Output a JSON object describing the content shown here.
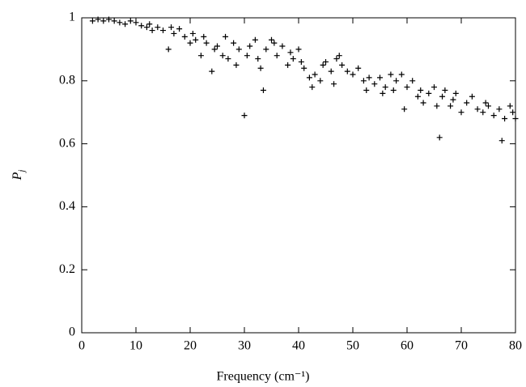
{
  "chart_data": {
    "type": "scatter",
    "marker": "plus",
    "color": "#000000",
    "xlabel": "Frequency (cm⁻¹)",
    "ylabel": "P",
    "ylabel_sub": "j",
    "xlim": [
      0,
      80
    ],
    "ylim": [
      0,
      1
    ],
    "xticks": [
      0,
      10,
      20,
      30,
      40,
      50,
      60,
      70,
      80
    ],
    "yticks": [
      0,
      0.2,
      0.4,
      0.6,
      0.8,
      1
    ],
    "x": [
      2,
      3,
      4,
      5,
      6,
      7,
      8,
      9,
      10,
      11,
      12,
      12.5,
      13,
      14,
      15,
      16,
      16.5,
      17,
      18,
      19,
      20,
      20.5,
      21,
      22,
      22.5,
      23,
      24,
      24.5,
      25,
      26,
      26.5,
      27,
      28,
      28.5,
      29,
      30,
      30.5,
      31,
      32,
      32.5,
      33,
      33.5,
      34,
      35,
      35.5,
      36,
      37,
      38,
      38.5,
      39,
      40,
      40.5,
      41,
      42,
      42.5,
      43,
      44,
      44.5,
      45,
      46,
      46.5,
      47,
      47.5,
      48,
      49,
      50,
      51,
      52,
      52.5,
      53,
      54,
      55,
      55.5,
      56,
      57,
      57.5,
      58,
      59,
      59.5,
      60,
      61,
      62,
      62.5,
      63,
      64,
      65,
      65.5,
      66,
      66.5,
      67,
      68,
      68.5,
      69,
      70,
      71,
      72,
      73,
      74,
      74.5,
      75,
      76,
      77,
      77.5,
      78,
      79,
      79.5,
      80
    ],
    "y": [
      0.99,
      0.995,
      0.99,
      0.995,
      0.99,
      0.985,
      0.98,
      0.99,
      0.985,
      0.975,
      0.97,
      0.98,
      0.96,
      0.97,
      0.96,
      0.9,
      0.97,
      0.95,
      0.965,
      0.94,
      0.92,
      0.95,
      0.93,
      0.88,
      0.94,
      0.92,
      0.83,
      0.9,
      0.91,
      0.88,
      0.94,
      0.87,
      0.92,
      0.85,
      0.9,
      0.69,
      0.88,
      0.91,
      0.93,
      0.87,
      0.84,
      0.77,
      0.9,
      0.93,
      0.92,
      0.88,
      0.91,
      0.85,
      0.89,
      0.87,
      0.9,
      0.86,
      0.84,
      0.81,
      0.78,
      0.82,
      0.8,
      0.85,
      0.86,
      0.83,
      0.79,
      0.87,
      0.88,
      0.85,
      0.83,
      0.82,
      0.84,
      0.8,
      0.77,
      0.81,
      0.79,
      0.81,
      0.76,
      0.78,
      0.82,
      0.77,
      0.8,
      0.82,
      0.71,
      0.78,
      0.8,
      0.75,
      0.77,
      0.73,
      0.76,
      0.78,
      0.72,
      0.62,
      0.75,
      0.77,
      0.72,
      0.74,
      0.76,
      0.7,
      0.73,
      0.75,
      0.71,
      0.7,
      0.73,
      0.72,
      0.69,
      0.71,
      0.61,
      0.68,
      0.72,
      0.7,
      0.68
    ]
  }
}
